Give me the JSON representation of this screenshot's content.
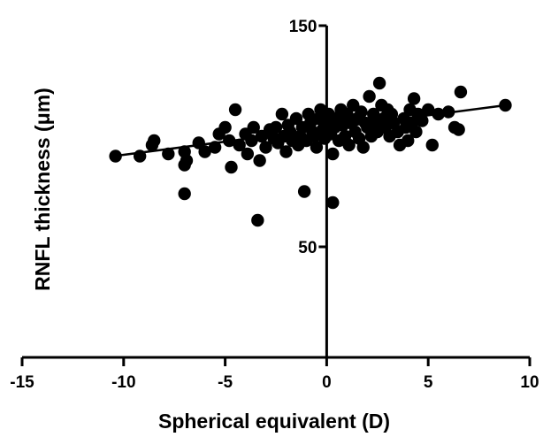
{
  "chart_data": {
    "type": "scatter",
    "title": "",
    "xlabel": "Spherical equivalent (D)",
    "ylabel": "RNFL thickness (μm)",
    "xlim": [
      -15,
      10
    ],
    "ylim": [
      0,
      150
    ],
    "x_ticks": [
      -15,
      -10,
      -5,
      0,
      5,
      10
    ],
    "y_ticks_labeled": [
      50,
      150
    ],
    "y_ticks_minor": [
      100
    ],
    "grid": false,
    "legend": "none",
    "point_color": "#000000",
    "regression_line": {
      "x": [
        -10.5,
        8.8
      ],
      "y": [
        91.0,
        114.0
      ]
    },
    "points": [
      {
        "x": -10.4,
        "y": 91
      },
      {
        "x": -9.2,
        "y": 91
      },
      {
        "x": -8.6,
        "y": 96
      },
      {
        "x": -8.5,
        "y": 98
      },
      {
        "x": -7.8,
        "y": 92
      },
      {
        "x": -7.0,
        "y": 93
      },
      {
        "x": -7.0,
        "y": 87
      },
      {
        "x": -6.9,
        "y": 89
      },
      {
        "x": -7.0,
        "y": 74
      },
      {
        "x": -6.3,
        "y": 97
      },
      {
        "x": -6.0,
        "y": 93
      },
      {
        "x": -5.5,
        "y": 95
      },
      {
        "x": -5.3,
        "y": 101
      },
      {
        "x": -5.0,
        "y": 104
      },
      {
        "x": -4.8,
        "y": 98
      },
      {
        "x": -4.7,
        "y": 86
      },
      {
        "x": -4.5,
        "y": 112
      },
      {
        "x": -4.3,
        "y": 96
      },
      {
        "x": -4.0,
        "y": 101
      },
      {
        "x": -3.9,
        "y": 92
      },
      {
        "x": -3.7,
        "y": 98
      },
      {
        "x": -3.6,
        "y": 104
      },
      {
        "x": -3.4,
        "y": 62
      },
      {
        "x": -3.3,
        "y": 89
      },
      {
        "x": -3.2,
        "y": 100
      },
      {
        "x": -3.0,
        "y": 95
      },
      {
        "x": -2.8,
        "y": 103
      },
      {
        "x": -2.6,
        "y": 99
      },
      {
        "x": -2.5,
        "y": 104
      },
      {
        "x": -2.4,
        "y": 97
      },
      {
        "x": -2.2,
        "y": 110
      },
      {
        "x": -2.1,
        "y": 100
      },
      {
        "x": -2.0,
        "y": 93
      },
      {
        "x": -1.9,
        "y": 105
      },
      {
        "x": -1.8,
        "y": 102
      },
      {
        "x": -1.7,
        "y": 98
      },
      {
        "x": -1.5,
        "y": 108
      },
      {
        "x": -1.4,
        "y": 96
      },
      {
        "x": -1.3,
        "y": 100
      },
      {
        "x": -1.2,
        "y": 104
      },
      {
        "x": -1.1,
        "y": 75
      },
      {
        "x": -1.0,
        "y": 98
      },
      {
        "x": -0.9,
        "y": 110
      },
      {
        "x": -0.8,
        "y": 106
      },
      {
        "x": -0.7,
        "y": 102
      },
      {
        "x": -0.6,
        "y": 100
      },
      {
        "x": -0.5,
        "y": 95
      },
      {
        "x": -0.4,
        "y": 108
      },
      {
        "x": -0.3,
        "y": 112
      },
      {
        "x": -0.2,
        "y": 103
      },
      {
        "x": -0.1,
        "y": 99
      },
      {
        "x": 0.0,
        "y": 106
      },
      {
        "x": 0.1,
        "y": 110
      },
      {
        "x": 0.2,
        "y": 101
      },
      {
        "x": 0.3,
        "y": 92
      },
      {
        "x": 0.3,
        "y": 70
      },
      {
        "x": 0.4,
        "y": 104
      },
      {
        "x": 0.5,
        "y": 108
      },
      {
        "x": 0.6,
        "y": 98
      },
      {
        "x": 0.7,
        "y": 112
      },
      {
        "x": 0.8,
        "y": 105
      },
      {
        "x": 0.9,
        "y": 100
      },
      {
        "x": 1.0,
        "y": 110
      },
      {
        "x": 1.1,
        "y": 96
      },
      {
        "x": 1.2,
        "y": 106
      },
      {
        "x": 1.3,
        "y": 114
      },
      {
        "x": 1.4,
        "y": 102
      },
      {
        "x": 1.5,
        "y": 108
      },
      {
        "x": 1.6,
        "y": 99
      },
      {
        "x": 1.7,
        "y": 111
      },
      {
        "x": 1.8,
        "y": 95
      },
      {
        "x": 1.9,
        "y": 106
      },
      {
        "x": 2.0,
        "y": 104
      },
      {
        "x": 2.1,
        "y": 118
      },
      {
        "x": 2.2,
        "y": 100
      },
      {
        "x": 2.3,
        "y": 110
      },
      {
        "x": 2.4,
        "y": 106
      },
      {
        "x": 2.5,
        "y": 102
      },
      {
        "x": 2.6,
        "y": 124
      },
      {
        "x": 2.7,
        "y": 114
      },
      {
        "x": 2.8,
        "y": 108
      },
      {
        "x": 2.9,
        "y": 104
      },
      {
        "x": 3.0,
        "y": 112
      },
      {
        "x": 3.1,
        "y": 100
      },
      {
        "x": 3.2,
        "y": 110
      },
      {
        "x": 3.3,
        "y": 106
      },
      {
        "x": 3.5,
        "y": 102
      },
      {
        "x": 3.6,
        "y": 96
      },
      {
        "x": 3.8,
        "y": 108
      },
      {
        "x": 3.9,
        "y": 104
      },
      {
        "x": 4.0,
        "y": 98
      },
      {
        "x": 4.1,
        "y": 112
      },
      {
        "x": 4.2,
        "y": 106
      },
      {
        "x": 4.3,
        "y": 117
      },
      {
        "x": 4.4,
        "y": 102
      },
      {
        "x": 4.5,
        "y": 110
      },
      {
        "x": 4.7,
        "y": 107
      },
      {
        "x": 5.0,
        "y": 112
      },
      {
        "x": 5.2,
        "y": 96
      },
      {
        "x": 5.5,
        "y": 110
      },
      {
        "x": 6.0,
        "y": 111
      },
      {
        "x": 6.3,
        "y": 104
      },
      {
        "x": 6.5,
        "y": 103
      },
      {
        "x": 6.6,
        "y": 120
      },
      {
        "x": 8.8,
        "y": 114
      }
    ]
  }
}
